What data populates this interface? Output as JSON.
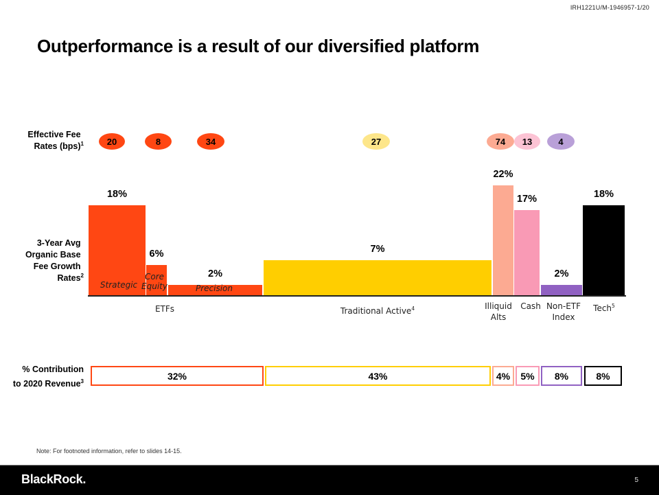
{
  "header": {
    "doc_id": "IRH1221U/M-1946957-1/20",
    "title": "Outperformance is a result of our diversified platform"
  },
  "row_labels": {
    "fee_rates": "Effective Fee Rates (bps)",
    "fee_rates_sup": "1",
    "growth": "3-Year Avg Organic Base Fee Growth Rates",
    "growth_sup": "2",
    "contribution_line1": "% Contribution",
    "contribution_line2": "to 2020 Revenue",
    "contribution_sup": "3"
  },
  "colors": {
    "etf": "#ff4713",
    "traditional": "#ffce00",
    "traditional_pill": "#fde68a",
    "illiquid": "#fcaa92",
    "cash": "#f99ab5",
    "cash_pill": "#fcc3d4",
    "non_etf": "#9061c2",
    "non_etf_pill": "#b9a0d8",
    "tech": "#000000"
  },
  "chart_data": {
    "type": "bar",
    "title": "Outperformance is a result of our diversified platform",
    "ylabel": "3-Year Avg Organic Base Fee Growth Rates (%)",
    "ylim": [
      0,
      22
    ],
    "grid": false,
    "bars": [
      {
        "key": "strategic",
        "group": "ETFs",
        "sublabel": "Strategic",
        "growth": 18,
        "growth_label": "18%",
        "fee_bps": "20",
        "color": "#ff4713",
        "pill_color": "#ff4713"
      },
      {
        "key": "core_equity",
        "group": "ETFs",
        "sublabel": "Core Equity",
        "growth": 6,
        "growth_label": "6%",
        "fee_bps": "8",
        "color": "#ff4713",
        "pill_color": "#ff4713"
      },
      {
        "key": "precision",
        "group": "ETFs",
        "sublabel": "Precision",
        "growth": 2,
        "growth_label": "2%",
        "fee_bps": "34",
        "color": "#ff4713",
        "pill_color": "#ff4713"
      },
      {
        "key": "traditional_active",
        "group": "Traditional Active",
        "sublabel": "",
        "growth": 7,
        "growth_label": "7%",
        "fee_bps": "27",
        "color": "#ffce00",
        "pill_color": "#fde68a"
      },
      {
        "key": "illiquid_alts",
        "group": "Illiquid Alts",
        "sublabel": "",
        "growth": 22,
        "growth_label": "22%",
        "fee_bps": "74",
        "color": "#fcaa92",
        "pill_color": "#fcaa92"
      },
      {
        "key": "cash",
        "group": "Cash",
        "sublabel": "",
        "growth": 17,
        "growth_label": "17%",
        "fee_bps": "13",
        "color": "#f99ab5",
        "pill_color": "#fcc3d4"
      },
      {
        "key": "non_etf_index",
        "group": "Non-ETF Index",
        "sublabel": "",
        "growth": 2,
        "growth_label": "2%",
        "fee_bps": "4",
        "color": "#9061c2",
        "pill_color": "#b9a0d8"
      },
      {
        "key": "tech",
        "group": "Tech",
        "sublabel": "",
        "growth": 18,
        "growth_label": "18%",
        "fee_bps": "",
        "color": "#000000",
        "pill_color": ""
      }
    ],
    "categories": [
      {
        "label": "ETFs",
        "sup": ""
      },
      {
        "label": "Traditional Active",
        "sup": "4"
      },
      {
        "label": "Illiquid Alts",
        "sup": ""
      },
      {
        "label": "Cash",
        "sup": ""
      },
      {
        "label": "Non-ETF Index",
        "sup": ""
      },
      {
        "label": "Tech",
        "sup": "5"
      }
    ],
    "contribution_2020_revenue": [
      {
        "category": "ETFs",
        "value": 32,
        "label": "32%",
        "color": "#ff4713"
      },
      {
        "category": "Traditional Active",
        "value": 43,
        "label": "43%",
        "color": "#ffce00"
      },
      {
        "category": "Illiquid Alts",
        "value": 4,
        "label": "4%",
        "color": "#fcaa92"
      },
      {
        "category": "Cash",
        "value": 5,
        "label": "5%",
        "color": "#f99ab5"
      },
      {
        "category": "Non-ETF Index",
        "value": 8,
        "label": "8%",
        "color": "#9061c2"
      },
      {
        "category": "Tech",
        "value": 8,
        "label": "8%",
        "color": "#000000"
      }
    ]
  },
  "footer": {
    "note": "Note: For footnoted information, refer to slides 14-15.",
    "logo": "BlackRock.",
    "page_number": "5"
  }
}
